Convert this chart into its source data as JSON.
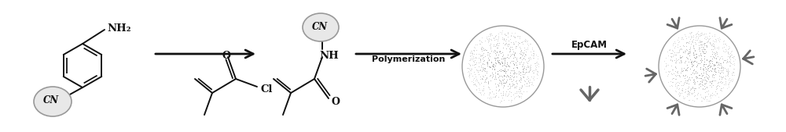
{
  "background_color": "#ffffff",
  "figure_width": 10.0,
  "figure_height": 1.69,
  "dpi": 100,
  "arrow_color": "#111111",
  "text_color": "#111111",
  "bond_color": "#111111",
  "bead_edge_color": "#aaaaaa",
  "bead_fill_color": "#e0e0e0",
  "bead_dot_color": "#777777",
  "antibody_color": "#666666",
  "label_polymerization": "Polymerization",
  "label_epcam": "EpCAM",
  "label_cl": "Cl",
  "label_nh2": "NH₂",
  "label_nh": "NH",
  "label_o": "O",
  "label_cn": "CN"
}
